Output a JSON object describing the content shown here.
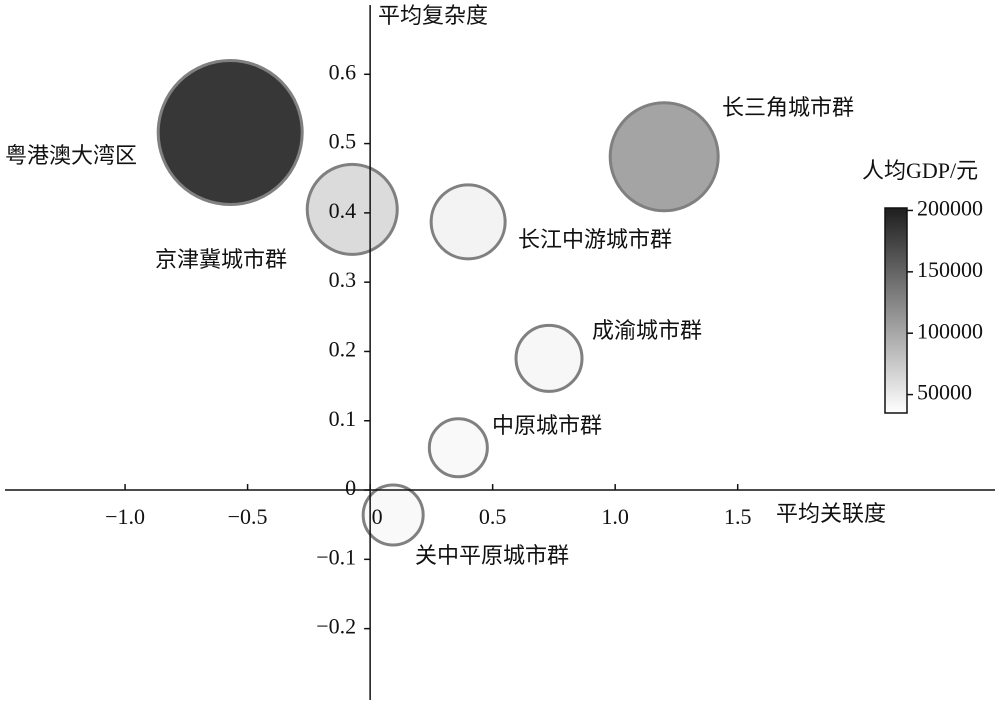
{
  "chart_data": {
    "type": "bubble",
    "x_label": "平均关联度",
    "y_label": "平均复杂度",
    "colorbar_label": "人均GDP/元",
    "points": [
      {
        "name": "粤港澳大湾区",
        "x": -0.571,
        "y": 0.516,
        "size": 72,
        "gdp": 200000
      },
      {
        "name": "京津冀城市群",
        "x": -0.073,
        "y": 0.405,
        "size": 45,
        "gdp": 65000
      },
      {
        "name": "长三角城市群",
        "x": 1.2,
        "y": 0.481,
        "size": 54,
        "gdp": 110000
      },
      {
        "name": "长江中游城市群",
        "x": 0.4,
        "y": 0.387,
        "size": 37,
        "gdp": 45000
      },
      {
        "name": "成渝城市群",
        "x": 0.73,
        "y": 0.19,
        "size": 33,
        "gdp": 42000
      },
      {
        "name": "中原城市群",
        "x": 0.36,
        "y": 0.061,
        "size": 29,
        "gdp": 40000
      },
      {
        "name": "关中平原城市群",
        "x": 0.094,
        "y": -0.036,
        "size": 30,
        "gdp": 40000
      }
    ],
    "xlim": [
      -1.49,
      2.55
    ],
    "xticks": [
      {
        "value": -1,
        "label": "−1.0"
      },
      {
        "value": -0.5,
        "label": "−0.5"
      },
      0,
      0.5,
      {
        "value": 1,
        "label": "1.0"
      },
      1.5
    ],
    "ylim": [
      -0.303,
      0.7
    ],
    "yticks": [
      {
        "value": -0.2,
        "label": "−0.2"
      },
      {
        "value": -0.1,
        "label": "−0.1"
      },
      0,
      0.1,
      0.2,
      0.3,
      0.4,
      0.5,
      0.6
    ],
    "clim": [
      35000,
      202000
    ],
    "cticks": [
      50000,
      100000,
      150000,
      200000
    ],
    "colormap": [
      "#ffffff",
      "#1e1e1e"
    ],
    "edge_color": "#808080"
  }
}
